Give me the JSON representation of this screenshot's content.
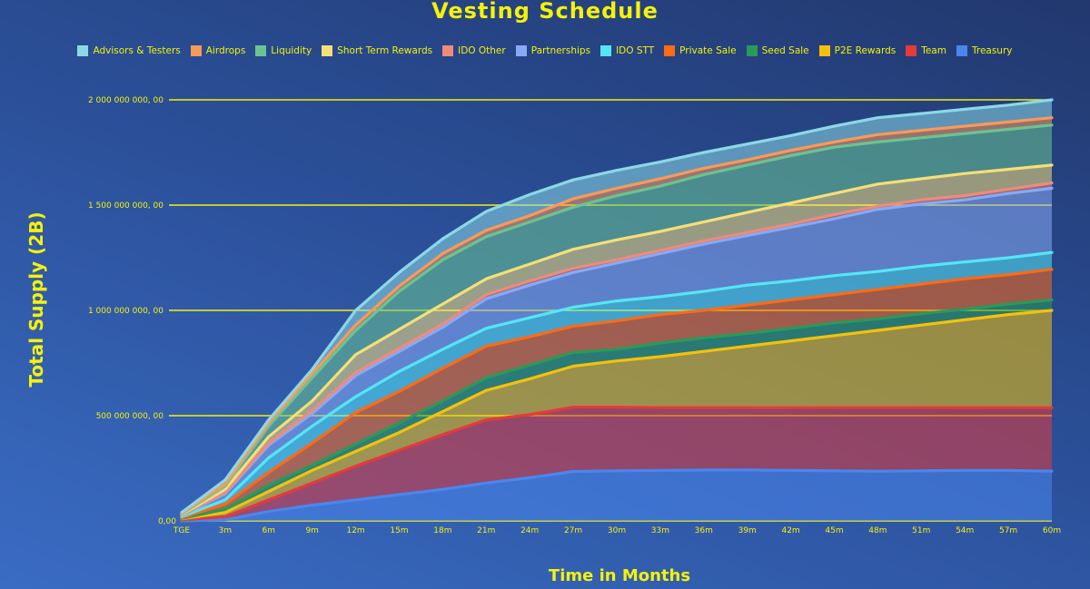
{
  "chart_data": {
    "type": "area",
    "title": "Vesting Schedule",
    "xlabel": "Time in Months",
    "ylabel": "Total Supply (2B)",
    "ylim": [
      0,
      2000000000
    ],
    "yticks": [
      0,
      500000000,
      1000000000,
      1500000000,
      2000000000
    ],
    "ytick_labels": [
      "0,00",
      "500 000 000, 00",
      "1 000 000 000, 00",
      "1 500 000 000, 00",
      "2 000 000 000, 00"
    ],
    "categories": [
      "TGE",
      "3m",
      "6m",
      "9m",
      "12m",
      "15m",
      "18m",
      "21m",
      "24m",
      "27m",
      "30m",
      "33m",
      "36m",
      "39m",
      "42m",
      "45m",
      "48m",
      "51m",
      "54m",
      "57m",
      "60m"
    ],
    "stack_order": "Treasury at bottom, Advisors & Testers at top; values are cumulative totals",
    "series": [
      {
        "name": "Treasury",
        "color": "#4a86ee",
        "values": [
          0,
          5,
          45,
          75,
          100,
          125,
          150,
          180,
          205,
          235,
          238,
          240,
          242,
          242,
          240,
          238,
          236,
          238,
          240,
          240,
          236
        ]
      },
      {
        "name": "Team",
        "color": "#e53a3a",
        "values": [
          5,
          20,
          100,
          180,
          260,
          335,
          410,
          480,
          505,
          540,
          540,
          538,
          538,
          538,
          538,
          538,
          538,
          538,
          538,
          538,
          538
        ]
      },
      {
        "name": "P2E Rewards",
        "color": "#f4c20a",
        "values": [
          10,
          40,
          140,
          240,
          330,
          420,
          520,
          620,
          675,
          735,
          760,
          780,
          805,
          830,
          855,
          880,
          905,
          930,
          955,
          980,
          1000
        ]
      },
      {
        "name": "Seed Sale",
        "color": "#2a9a58",
        "values": [
          12,
          55,
          170,
          265,
          365,
          465,
          570,
          680,
          740,
          800,
          815,
          845,
          870,
          890,
          915,
          940,
          960,
          985,
          1005,
          1030,
          1050
        ]
      },
      {
        "name": "Private Sale",
        "color": "#ff6a14",
        "values": [
          15,
          80,
          230,
          370,
          515,
          615,
          725,
          830,
          875,
          925,
          950,
          980,
          1000,
          1025,
          1050,
          1075,
          1100,
          1125,
          1150,
          1170,
          1195
        ]
      },
      {
        "name": "IDO STT",
        "color": "#55e6f6",
        "values": [
          20,
          100,
          300,
          450,
          590,
          710,
          815,
          915,
          965,
          1015,
          1045,
          1065,
          1090,
          1120,
          1140,
          1165,
          1185,
          1210,
          1230,
          1250,
          1275
        ]
      },
      {
        "name": "Partnerships",
        "color": "#88aaf4",
        "values": [
          25,
          130,
          360,
          510,
          690,
          805,
          920,
          1055,
          1120,
          1180,
          1225,
          1270,
          1315,
          1355,
          1395,
          1435,
          1480,
          1505,
          1525,
          1555,
          1580
        ]
      },
      {
        "name": "IDO Other",
        "color": "#f08a7a",
        "values": [
          28,
          135,
          370,
          525,
          705,
          820,
          935,
          1075,
          1140,
          1200,
          1240,
          1285,
          1330,
          1370,
          1410,
          1455,
          1495,
          1525,
          1545,
          1575,
          1605
        ]
      },
      {
        "name": "Short Term Rewards",
        "color": "#f4df78",
        "values": [
          30,
          150,
          400,
          570,
          790,
          910,
          1030,
          1150,
          1220,
          1290,
          1335,
          1375,
          1420,
          1465,
          1510,
          1555,
          1600,
          1625,
          1650,
          1670,
          1690
        ]
      },
      {
        "name": "Liquidity",
        "color": "#6ac492",
        "values": [
          33,
          165,
          450,
          680,
          905,
          1090,
          1240,
          1350,
          1420,
          1490,
          1545,
          1590,
          1645,
          1690,
          1735,
          1775,
          1800,
          1820,
          1840,
          1860,
          1880
        ]
      },
      {
        "name": "Airdrops",
        "color": "#f89a5a",
        "values": [
          36,
          175,
          465,
          700,
          930,
          1115,
          1270,
          1380,
          1450,
          1530,
          1580,
          1625,
          1675,
          1715,
          1760,
          1800,
          1835,
          1855,
          1875,
          1895,
          1915
        ]
      },
      {
        "name": "Advisors & Testers",
        "color": "#8cd8e6",
        "values": [
          40,
          195,
          480,
          720,
          1000,
          1180,
          1340,
          1470,
          1550,
          1620,
          1665,
          1705,
          1750,
          1790,
          1830,
          1875,
          1915,
          1935,
          1955,
          1975,
          2000
        ]
      }
    ],
    "series_units": "millions of tokens",
    "legend": [
      "Advisors & Testers",
      "Airdrops",
      "Liquidity",
      "Short Term Rewards",
      "IDO Other",
      "Partnerships",
      "IDO STT",
      "Private Sale",
      "Seed Sale",
      "P2E Rewards",
      "Team",
      "Treasury"
    ],
    "legend_position": "top",
    "grid": true,
    "grid_color": "#f4f20a"
  }
}
